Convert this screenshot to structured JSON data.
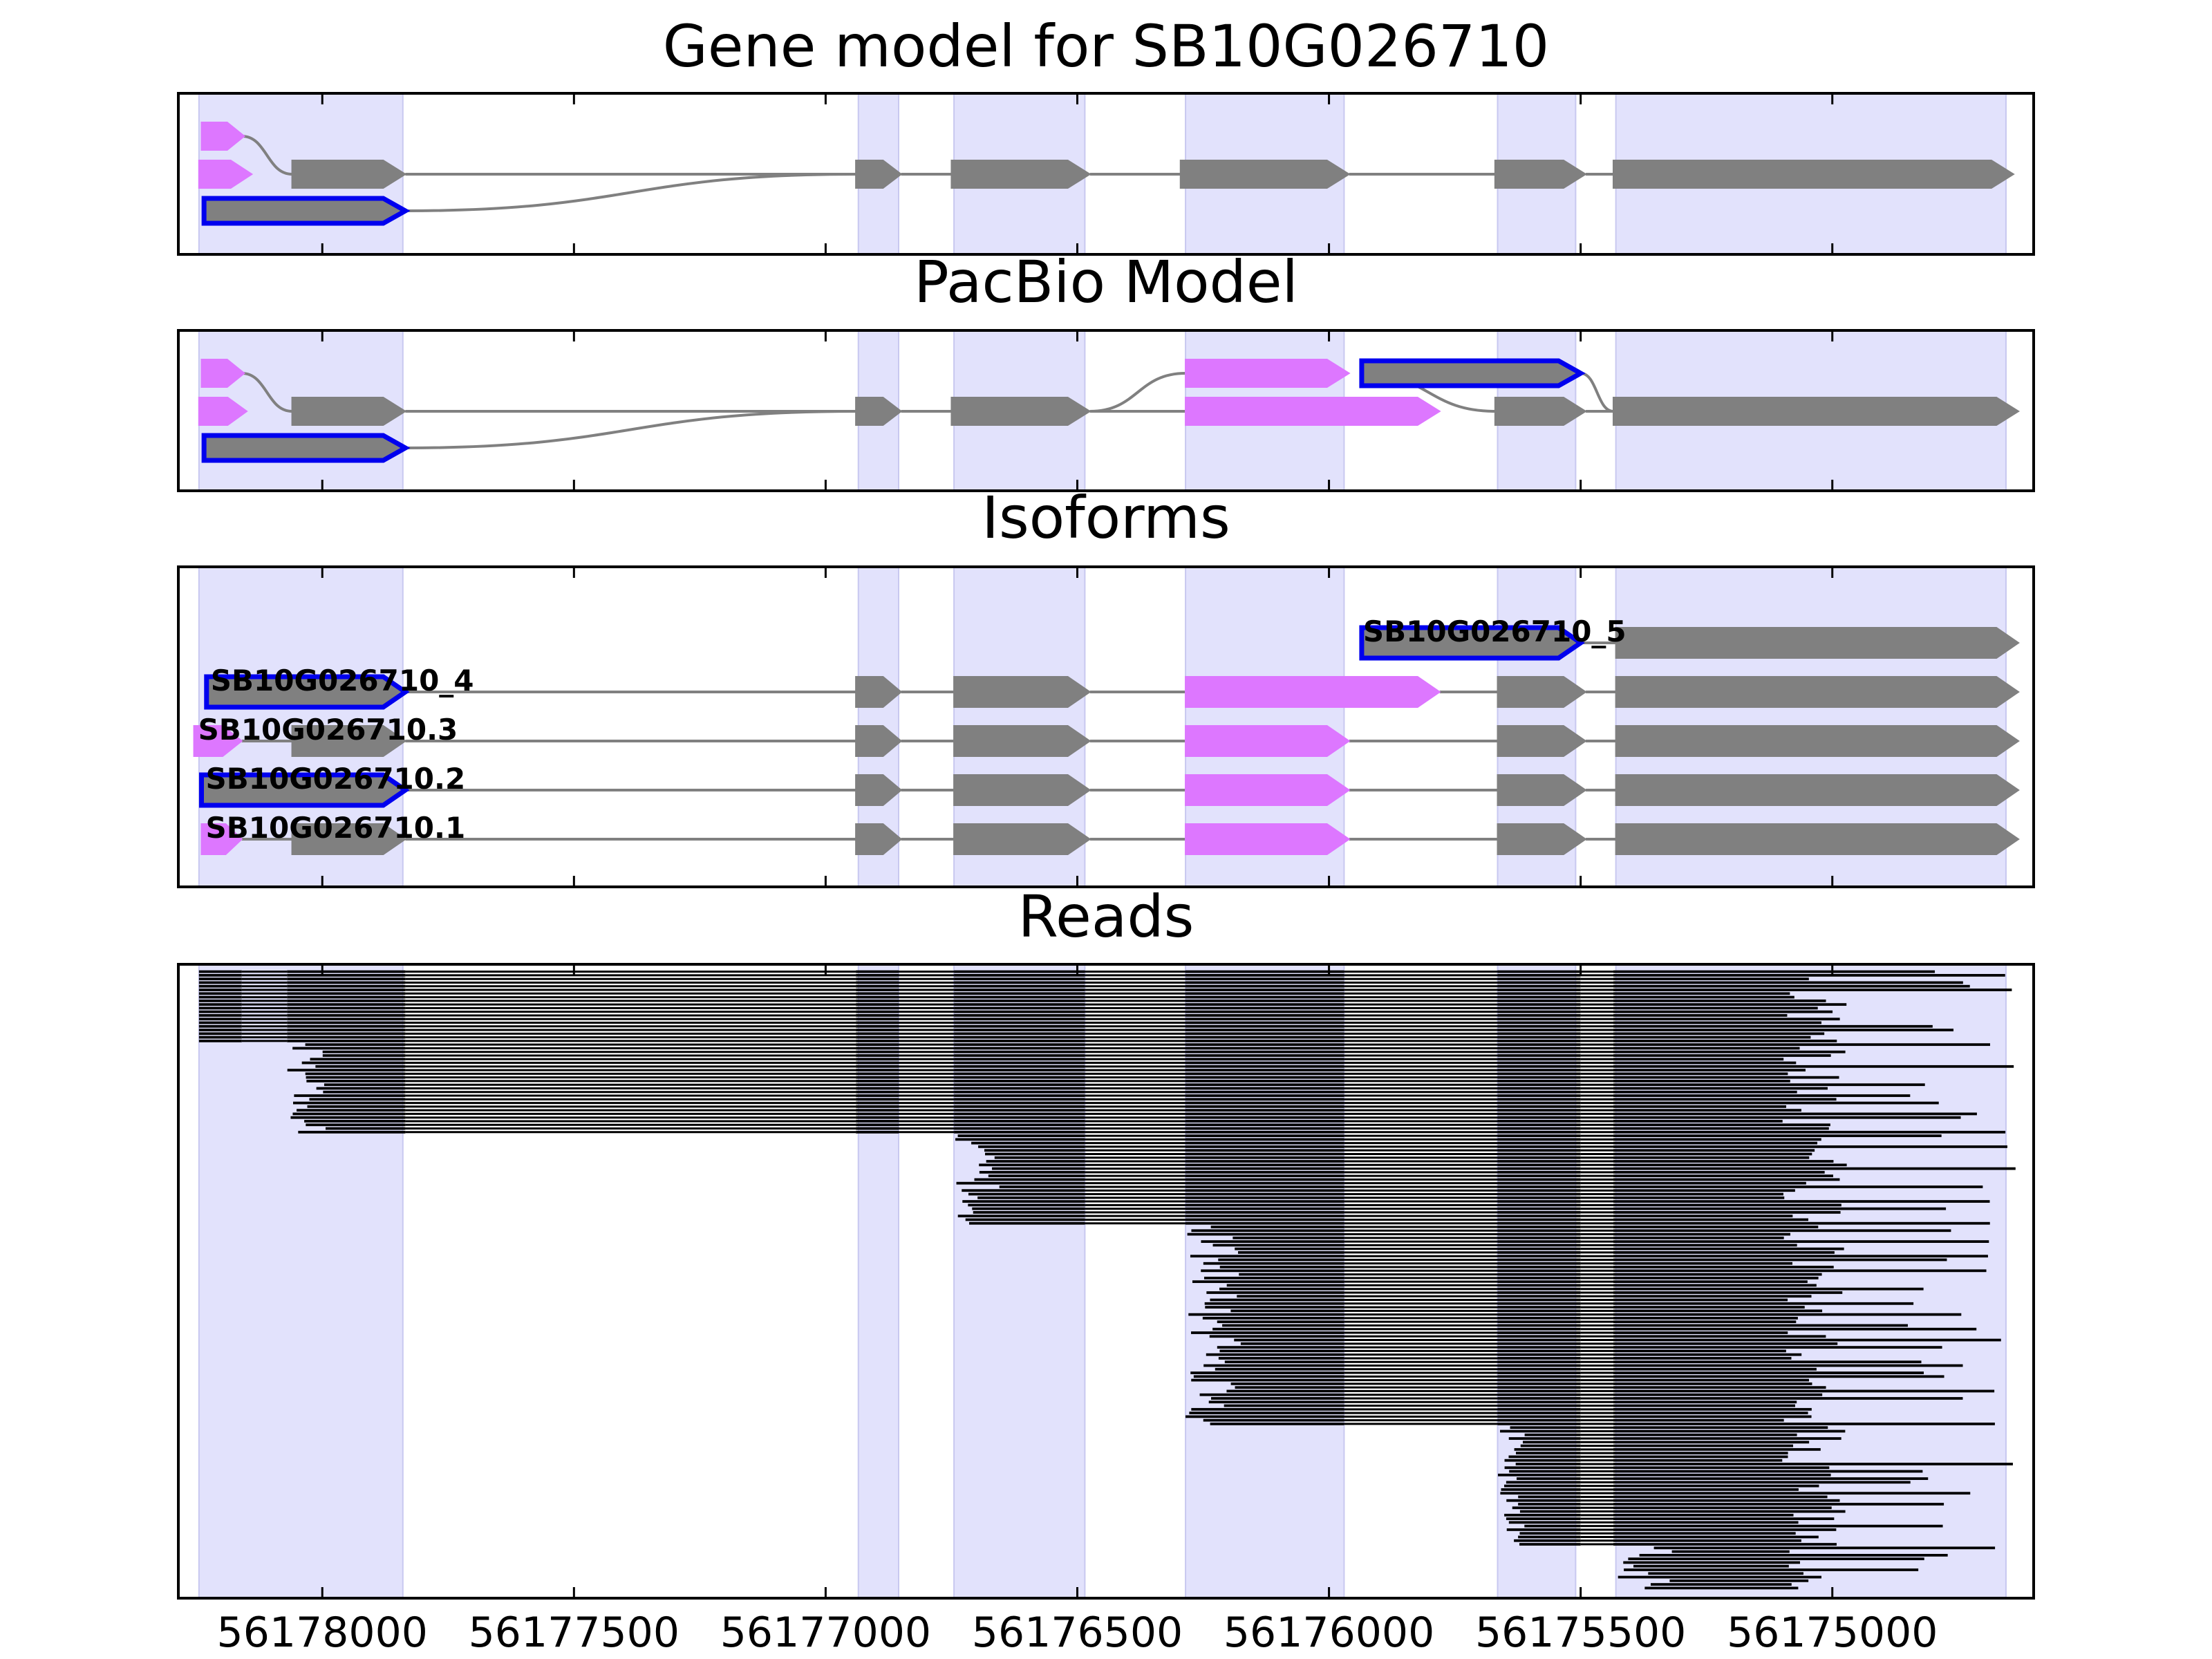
{
  "titles": {
    "gene_model": "Gene model for SB10G026710",
    "pacbio": "PacBio Model",
    "isoforms": "Isoforms",
    "reads": "Reads"
  },
  "colors": {
    "exon": "#808080",
    "alt_exon": "#DD77FF",
    "highlight_stroke": "#0000EE",
    "shade": "#E2E2FC",
    "shade_edge": "#C8C8F0",
    "intron": "#808080",
    "read": "#000000"
  },
  "chart_data": {
    "type": "gene-structure",
    "title": "Gene model for SB10G026710",
    "x_direction": "reversed (decreasing to the right)",
    "xlim": [
      56178286,
      56174600
    ],
    "xticks": [
      56178000,
      56177500,
      56177000,
      56176500,
      56176000,
      56175500,
      56175000
    ],
    "x_tick_labels": [
      "56178000",
      "56177500",
      "56177000",
      "56176500",
      "56176000",
      "56175500",
      "56175000"
    ],
    "shaded_regions": [
      [
        56178245,
        56177840
      ],
      [
        56176935,
        56176855
      ],
      [
        56176745,
        56176485
      ],
      [
        56176285,
        56175970
      ],
      [
        56175665,
        56175510
      ],
      [
        56175430,
        56174655
      ]
    ],
    "panels": [
      {
        "name": "Gene model for SB10G026710",
        "tracks": [
          {
            "exons": [
              {
                "start": 56178240,
                "end": 56178155,
                "kind": "alt"
              },
              {
                "start": 56178060,
                "end": 56177835,
                "kind": "gene"
              },
              {
                "start": 56176940,
                "end": 56176850,
                "kind": "gene"
              },
              {
                "start": 56176750,
                "end": 56176475,
                "kind": "gene"
              },
              {
                "start": 56176295,
                "end": 56175960,
                "kind": "gene"
              },
              {
                "start": 56175670,
                "end": 56175490,
                "kind": "gene"
              },
              {
                "start": 56175435,
                "end": 56174640,
                "kind": "gene"
              }
            ]
          },
          {
            "exons": [
              {
                "start": 56178245,
                "end": 56178140,
                "kind": "alt"
              },
              {
                "start": 56178060,
                "end": 56177835,
                "kind": "gene"
              }
            ],
            "note": "joins upper track"
          },
          {
            "exons": [
              {
                "start": 56178235,
                "end": 56177835,
                "kind": "highlight"
              }
            ],
            "note": "joins upper track"
          }
        ]
      },
      {
        "name": "PacBio Model",
        "tracks": [
          {
            "exons": [
              {
                "start": 56178240,
                "end": 56178155,
                "kind": "alt"
              },
              {
                "start": 56178060,
                "end": 56177835,
                "kind": "gene"
              },
              {
                "start": 56176940,
                "end": 56176850,
                "kind": "gene"
              },
              {
                "start": 56176750,
                "end": 56176475,
                "kind": "gene"
              },
              {
                "start": 56176285,
                "end": 56175780,
                "kind": "alt"
              },
              {
                "start": 56175670,
                "end": 56175490,
                "kind": "gene"
              },
              {
                "start": 56175435,
                "end": 56174630,
                "kind": "gene"
              }
            ]
          },
          {
            "exons": [
              {
                "start": 56178235,
                "end": 56178150,
                "kind": "alt"
              },
              {
                "start": 56176285,
                "end": 56175960,
                "kind": "alt"
              },
              {
                "start": 56175935,
                "end": 56175500,
                "kind": "highlight"
              }
            ]
          },
          {
            "exons": [
              {
                "start": 56178235,
                "end": 56177835,
                "kind": "highlight"
              }
            ]
          }
        ]
      },
      {
        "name": "Isoforms",
        "isoforms": [
          {
            "label": "SB10G026710_5",
            "exons": [
              {
                "start": 56175935,
                "end": 56175500,
                "kind": "highlight"
              },
              {
                "start": 56175430,
                "end": 56174630,
                "kind": "gene"
              }
            ]
          },
          {
            "label": "SB10G026710_4",
            "exons": [
              {
                "start": 56178230,
                "end": 56177835,
                "kind": "highlight"
              },
              {
                "start": 56176940,
                "end": 56176850,
                "kind": "gene"
              },
              {
                "start": 56176745,
                "end": 56176475,
                "kind": "gene"
              },
              {
                "start": 56176285,
                "end": 56175780,
                "kind": "alt"
              },
              {
                "start": 56175665,
                "end": 56175490,
                "kind": "gene"
              },
              {
                "start": 56175430,
                "end": 56174630,
                "kind": "gene"
              }
            ]
          },
          {
            "label": "SB10G026710.3",
            "exons": [
              {
                "start": 56178255,
                "end": 56178160,
                "kind": "alt"
              },
              {
                "start": 56178060,
                "end": 56177835,
                "kind": "gene"
              },
              {
                "start": 56176940,
                "end": 56176850,
                "kind": "gene"
              },
              {
                "start": 56176745,
                "end": 56176475,
                "kind": "gene"
              },
              {
                "start": 56176285,
                "end": 56175960,
                "kind": "alt"
              },
              {
                "start": 56175665,
                "end": 56175490,
                "kind": "gene"
              },
              {
                "start": 56175430,
                "end": 56174630,
                "kind": "gene"
              }
            ]
          },
          {
            "label": "SB10G026710.2",
            "exons": [
              {
                "start": 56178240,
                "end": 56177835,
                "kind": "highlight"
              },
              {
                "start": 56176940,
                "end": 56176850,
                "kind": "gene"
              },
              {
                "start": 56176745,
                "end": 56176475,
                "kind": "gene"
              },
              {
                "start": 56176285,
                "end": 56175960,
                "kind": "alt"
              },
              {
                "start": 56175665,
                "end": 56175490,
                "kind": "gene"
              },
              {
                "start": 56175430,
                "end": 56174630,
                "kind": "gene"
              }
            ]
          },
          {
            "label": "SB10G026710.1",
            "exons": [
              {
                "start": 56178240,
                "end": 56178160,
                "kind": "alt"
              },
              {
                "start": 56178060,
                "end": 56177835,
                "kind": "gene"
              },
              {
                "start": 56176940,
                "end": 56176850,
                "kind": "gene"
              },
              {
                "start": 56176745,
                "end": 56176475,
                "kind": "gene"
              },
              {
                "start": 56176285,
                "end": 56175960,
                "kind": "alt"
              },
              {
                "start": 56175665,
                "end": 56175490,
                "kind": "gene"
              },
              {
                "start": 56175430,
                "end": 56174630,
                "kind": "gene"
              }
            ]
          }
        ]
      },
      {
        "name": "Reads",
        "read_count": 170,
        "note": "stacked aligned long reads; each read drawn as exon blocks joined by thin lines, sorted by 5' start"
      }
    ]
  }
}
